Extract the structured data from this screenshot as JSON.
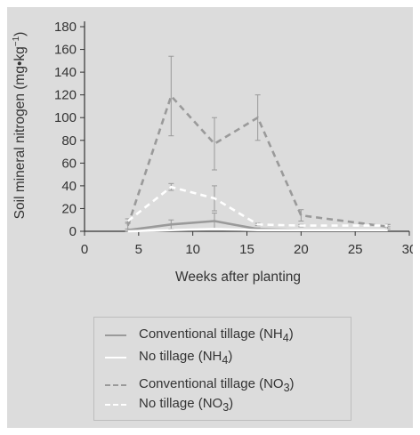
{
  "chart_data": {
    "type": "line",
    "xlabel": "Weeks after planting",
    "ylabel": "Soil mineral nitrogen (mg•kg",
    "ylabel_sup": "−1",
    "ylabel_close": ")",
    "xlim": [
      0,
      30
    ],
    "ylim": [
      0,
      180
    ],
    "xticks": [
      0,
      5,
      10,
      15,
      20,
      25,
      30
    ],
    "yticks": [
      0,
      20,
      40,
      60,
      80,
      100,
      120,
      140,
      160,
      180
    ],
    "grid": false,
    "legend_position": "bottom",
    "series": [
      {
        "name": "Conventional tillage (NH4)",
        "legend_main": "Conventional tillage (NH",
        "legend_sub": "4",
        "legend_close": ")",
        "style": "solid",
        "color": "#9a9a9a",
        "x": [
          4,
          8,
          12,
          16,
          20,
          28
        ],
        "y": [
          1,
          6,
          9,
          2,
          1,
          1
        ],
        "err": [
          1,
          4,
          7,
          1,
          0,
          0
        ]
      },
      {
        "name": "No tillage (NH4)",
        "legend_main": "No tillage (NH",
        "legend_sub": "4",
        "legend_close": ")",
        "style": "solid",
        "color": "#ffffff",
        "x": [
          4,
          8,
          12,
          16,
          20,
          28
        ],
        "y": [
          0,
          1,
          2,
          1,
          1,
          1
        ],
        "err": [
          0,
          0,
          0,
          0,
          0,
          0
        ]
      },
      {
        "name": "Conventional tillage (NO3)",
        "legend_main": "Conventional tillage (NO",
        "legend_sub": "3",
        "legend_close": ")",
        "style": "dashed",
        "color": "#9a9a9a",
        "x": [
          4,
          8,
          12,
          16,
          20,
          28
        ],
        "y": [
          5,
          119,
          77,
          100,
          14,
          4
        ],
        "err": [
          3,
          35,
          23,
          20,
          5,
          2
        ]
      },
      {
        "name": "No tillage (NO3)",
        "legend_main": "No tillage (NO",
        "legend_sub": "3",
        "legend_close": ")",
        "style": "dashed",
        "color": "#ffffff",
        "x": [
          4,
          8,
          12,
          16,
          20,
          28
        ],
        "y": [
          9,
          39,
          29,
          6,
          5,
          5
        ],
        "err": [
          2,
          3,
          11,
          1,
          1,
          1
        ]
      }
    ]
  }
}
